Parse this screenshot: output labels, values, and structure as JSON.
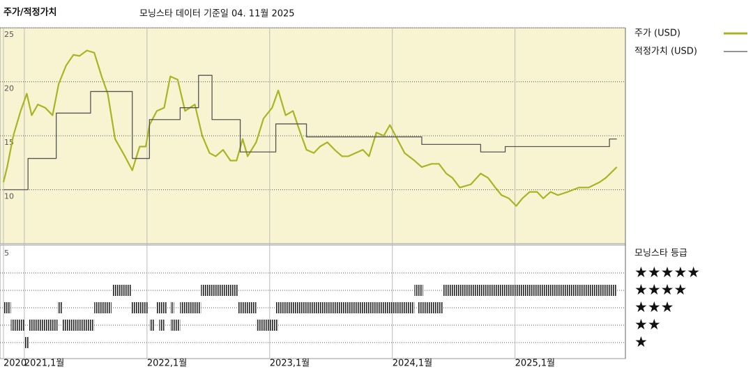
{
  "chart_data": {
    "type": "line",
    "title": "주가/적정가치",
    "subtitle": "모닝스타 데이터 기준일 04. 11월 2025",
    "xlim": [
      2020.83,
      2025.9
    ],
    "xticks": [
      {
        "value": 2020.83,
        "label": "2020"
      },
      {
        "value": 2021,
        "label": "2021,1월"
      },
      {
        "value": 2022,
        "label": "2022,1월"
      },
      {
        "value": 2023,
        "label": "2023,1월"
      },
      {
        "value": 2024,
        "label": "2024,1월"
      },
      {
        "value": 2025,
        "label": "2025,1월"
      }
    ],
    "ylim": [
      5,
      25
    ],
    "yticks": [
      10,
      15,
      20,
      25
    ],
    "grid": true,
    "background": "#f8f4d2",
    "series": [
      {
        "name": "주가 (USD)",
        "color": "#a9b424",
        "step": false,
        "x": [
          2020.83,
          2020.86,
          2020.91,
          2020.97,
          2021.02,
          2021.06,
          2021.11,
          2021.17,
          2021.23,
          2021.28,
          2021.34,
          2021.4,
          2021.45,
          2021.51,
          2021.57,
          2021.63,
          2021.68,
          2021.74,
          2021.82,
          2021.88,
          2021.94,
          2021.99,
          2022.02,
          2022.08,
          2022.14,
          2022.19,
          2022.25,
          2022.31,
          2022.39,
          2022.45,
          2022.51,
          2022.56,
          2022.62,
          2022.68,
          2022.73,
          2022.78,
          2022.82,
          2022.89,
          2022.95,
          2023.02,
          2023.07,
          2023.13,
          2023.19,
          2023.24,
          2023.3,
          2023.36,
          2023.41,
          2023.47,
          2023.53,
          2023.59,
          2023.64,
          2023.7,
          2023.76,
          2023.81,
          2023.87,
          2023.93,
          2023.98,
          2024.04,
          2024.1,
          2024.18,
          2024.24,
          2024.32,
          2024.38,
          2024.44,
          2024.49,
          2024.55,
          2024.64,
          2024.72,
          2024.78,
          2024.84,
          2024.89,
          2024.95,
          2025.01,
          2025.06,
          2025.12,
          2025.18,
          2025.23,
          2025.29,
          2025.35,
          2025.43,
          2025.52,
          2025.6,
          2025.69,
          2025.74,
          2025.83
        ],
        "values": [
          10.7,
          12.1,
          15,
          17.3,
          18.9,
          16.9,
          17.9,
          17.6,
          16.9,
          19.8,
          21.5,
          22.5,
          22.4,
          22.9,
          22.7,
          20.5,
          18.9,
          14.7,
          13.1,
          11.8,
          14,
          14,
          16,
          17.3,
          17.6,
          20.5,
          20.2,
          17.3,
          17.9,
          15,
          13.4,
          13.1,
          13.7,
          12.7,
          12.7,
          14.7,
          13.1,
          14.4,
          16.6,
          17.6,
          19.2,
          16.9,
          17.3,
          15.6,
          13.7,
          13.4,
          14,
          14.4,
          13.7,
          13.1,
          13.1,
          13.4,
          13.7,
          13.1,
          15.3,
          15,
          16,
          14.7,
          13.4,
          12.7,
          12.1,
          12.4,
          12.4,
          11.5,
          11.1,
          10.2,
          10.5,
          11.5,
          11.1,
          10.2,
          9.5,
          9.2,
          8.5,
          9.2,
          9.8,
          9.8,
          9.2,
          9.8,
          9.5,
          9.8,
          10.2,
          10.2,
          10.7,
          11.1,
          12.1
        ]
      },
      {
        "name": "적정가치 (USD)",
        "color": "#555555",
        "step": true,
        "x": [
          2020.83,
          2021.03,
          2021.26,
          2021.54,
          2021.88,
          2022.02,
          2022.27,
          2022.42,
          2022.53,
          2022.76,
          2023.05,
          2023.3,
          2024.24,
          2024.72,
          2024.92,
          2025.77,
          2025.83
        ],
        "values": [
          10,
          12.9,
          17.1,
          19.1,
          12.9,
          16.5,
          17.6,
          20.6,
          16.5,
          13.5,
          16.1,
          14.9,
          14.2,
          13.5,
          14,
          14.7,
          14.7
        ]
      }
    ],
    "ratings_title": "모닝스타 등급",
    "ratings_axis_label": "5",
    "rating_levels": [
      {
        "value": 5,
        "label": "★★★★★"
      },
      {
        "value": 4,
        "label": "★★★★"
      },
      {
        "value": 3,
        "label": "★★★"
      },
      {
        "value": 2,
        "label": "★★"
      },
      {
        "value": 1,
        "label": "★"
      }
    ],
    "ratings": [
      {
        "start": 2020.83,
        "end": 2020.89,
        "rating": 3
      },
      {
        "start": 2020.89,
        "end": 2021.0,
        "rating": 2
      },
      {
        "start": 2021.0,
        "end": 2021.04,
        "rating": 1
      },
      {
        "start": 2021.04,
        "end": 2021.27,
        "rating": 2
      },
      {
        "start": 2021.27,
        "end": 2021.31,
        "rating": 3
      },
      {
        "start": 2021.31,
        "end": 2021.57,
        "rating": 2
      },
      {
        "start": 2021.57,
        "end": 2021.71,
        "rating": 3
      },
      {
        "start": 2021.72,
        "end": 2021.87,
        "rating": 4
      },
      {
        "start": 2021.87,
        "end": 2022.01,
        "rating": 3
      },
      {
        "start": 2022.02,
        "end": 2022.06,
        "rating": 2
      },
      {
        "start": 2022.08,
        "end": 2022.16,
        "rating": 3
      },
      {
        "start": 2022.1,
        "end": 2022.14,
        "rating": 2
      },
      {
        "start": 2022.19,
        "end": 2022.22,
        "rating": 3
      },
      {
        "start": 2022.19,
        "end": 2022.27,
        "rating": 2
      },
      {
        "start": 2022.27,
        "end": 2022.44,
        "rating": 3
      },
      {
        "start": 2022.44,
        "end": 2022.74,
        "rating": 4
      },
      {
        "start": 2022.74,
        "end": 2022.89,
        "rating": 3
      },
      {
        "start": 2022.89,
        "end": 2023.07,
        "rating": 2
      },
      {
        "start": 2023.05,
        "end": 2024.18,
        "rating": 3
      },
      {
        "start": 2024.18,
        "end": 2024.25,
        "rating": 4
      },
      {
        "start": 2024.21,
        "end": 2024.41,
        "rating": 3
      },
      {
        "start": 2024.41,
        "end": 2025.83,
        "rating": 4
      }
    ]
  }
}
